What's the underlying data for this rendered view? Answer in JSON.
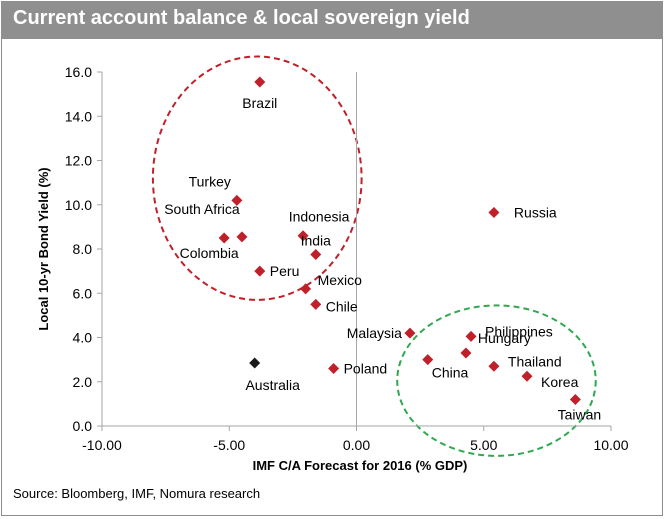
{
  "title": "Current account balance & local sovereign yield",
  "source": "Source: Bloomberg, IMF, Nomura research",
  "colors": {
    "title_bar": "#8f8f8f",
    "marker_red": "#c0202a",
    "marker_black": "#1a1a1a",
    "circle_red": "#c0202a",
    "circle_green": "#2fa84f"
  },
  "chart_data": {
    "type": "scatter",
    "title": "Current account balance & local sovereign yield",
    "xlabel": "IMF C/A Forecast for 2016 (% GDP)",
    "ylabel": "Local 10-yr Bond Yield (%)",
    "xlim": [
      -10,
      10
    ],
    "ylim": [
      0,
      16
    ],
    "x_ticks": [
      "-10.00",
      "-5.00",
      "0.00",
      "5.00",
      "10.00"
    ],
    "y_ticks": [
      "0.0",
      "2.0",
      "4.0",
      "6.0",
      "8.0",
      "10.0",
      "12.0",
      "14.0",
      "16.0"
    ],
    "grid": false,
    "legend": "none",
    "points": [
      {
        "label": "Brazil",
        "x": -3.8,
        "y": 15.55,
        "color": "red"
      },
      {
        "label": "Turkey",
        "x": -4.7,
        "y": 10.2,
        "color": "red"
      },
      {
        "label": "South Africa",
        "x": -4.5,
        "y": 8.55,
        "color": "red"
      },
      {
        "label": "Colombia",
        "x": -5.2,
        "y": 8.5,
        "color": "red"
      },
      {
        "label": "Indonesia",
        "x": -2.1,
        "y": 8.6,
        "color": "red"
      },
      {
        "label": "India",
        "x": -1.6,
        "y": 7.75,
        "color": "red"
      },
      {
        "label": "Peru",
        "x": -3.8,
        "y": 7.0,
        "color": "red"
      },
      {
        "label": "Mexico",
        "x": -2.0,
        "y": 6.2,
        "color": "red"
      },
      {
        "label": "Chile",
        "x": -1.6,
        "y": 5.5,
        "color": "red"
      },
      {
        "label": "Malaysia",
        "x": 2.1,
        "y": 4.2,
        "color": "red"
      },
      {
        "label": "Philippines",
        "x": 4.5,
        "y": 4.05,
        "color": "red"
      },
      {
        "label": "Hungary",
        "x": 4.3,
        "y": 3.3,
        "color": "red"
      },
      {
        "label": "China",
        "x": 2.8,
        "y": 3.0,
        "color": "red"
      },
      {
        "label": "Thailand",
        "x": 5.4,
        "y": 2.7,
        "color": "red"
      },
      {
        "label": "Korea",
        "x": 6.7,
        "y": 2.25,
        "color": "red"
      },
      {
        "label": "Taiwan",
        "x": 8.6,
        "y": 1.2,
        "color": "red"
      },
      {
        "label": "Poland",
        "x": -0.9,
        "y": 2.6,
        "color": "red"
      },
      {
        "label": "Australia",
        "x": -4.0,
        "y": 2.85,
        "color": "black"
      },
      {
        "label": "Russia",
        "x": 5.4,
        "y": 9.65,
        "color": "red"
      }
    ],
    "annotations": [
      {
        "shape": "dashed-ellipse",
        "color": "red",
        "center": [
          -3.9,
          11.2
        ],
        "radius": [
          4.1,
          5.5
        ]
      },
      {
        "shape": "dashed-ellipse",
        "color": "green",
        "center": [
          5.5,
          2.05
        ],
        "radius": [
          3.9,
          3.4
        ]
      }
    ]
  }
}
